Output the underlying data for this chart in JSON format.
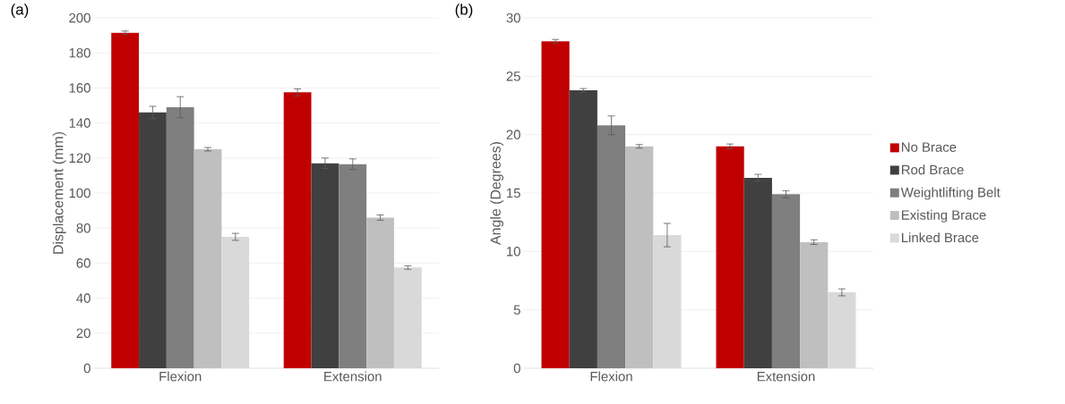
{
  "chart_data": [
    {
      "type": "bar",
      "title": "(a)",
      "ylabel": "Displacement (mm)",
      "categories": [
        "Flexion",
        "Extension"
      ],
      "series": [
        {
          "color": "#c00000",
          "values": [
            191.5,
            157.5
          ],
          "errors": [
            1,
            2
          ]
        },
        {
          "color": "#404040",
          "values": [
            146,
            117
          ],
          "errors": [
            3.5,
            3
          ]
        },
        {
          "color": "#7f7f7f",
          "values": [
            149,
            116.5
          ],
          "errors": [
            6,
            3
          ]
        },
        {
          "color": "#bfbfbf",
          "values": [
            125,
            86
          ],
          "errors": [
            1,
            1.5
          ]
        },
        {
          "color": "#d9d9d9",
          "values": [
            75,
            57.5
          ],
          "errors": [
            2,
            1
          ]
        }
      ],
      "ylim": [
        0,
        200
      ],
      "yticks": [
        0,
        20,
        40,
        60,
        80,
        100,
        120,
        140,
        160,
        180,
        200
      ],
      "grid": "y",
      "legend": false
    },
    {
      "type": "bar",
      "title": "(b)",
      "ylabel": "Angle (Degrees)",
      "categories": [
        "Flexion",
        "Extension"
      ],
      "series": [
        {
          "name": "No Brace",
          "color": "#c00000",
          "values": [
            28,
            19
          ],
          "errors": [
            0.15,
            0.2
          ]
        },
        {
          "name": "Rod Brace",
          "color": "#404040",
          "values": [
            23.8,
            16.3
          ],
          "errors": [
            0.15,
            0.3
          ]
        },
        {
          "name": "Weightlifting Belt",
          "color": "#7f7f7f",
          "values": [
            20.8,
            14.9
          ],
          "errors": [
            0.8,
            0.3
          ]
        },
        {
          "name": "Existing Brace",
          "color": "#bfbfbf",
          "values": [
            19,
            10.8
          ],
          "errors": [
            0.15,
            0.2
          ]
        },
        {
          "name": "Linked Brace",
          "color": "#d9d9d9",
          "values": [
            11.4,
            6.5
          ],
          "errors": [
            1,
            0.3
          ]
        }
      ],
      "ylim": [
        0,
        30
      ],
      "yticks": [
        0,
        5,
        10,
        15,
        20,
        25,
        30
      ],
      "grid": "y",
      "legend": "right"
    }
  ]
}
